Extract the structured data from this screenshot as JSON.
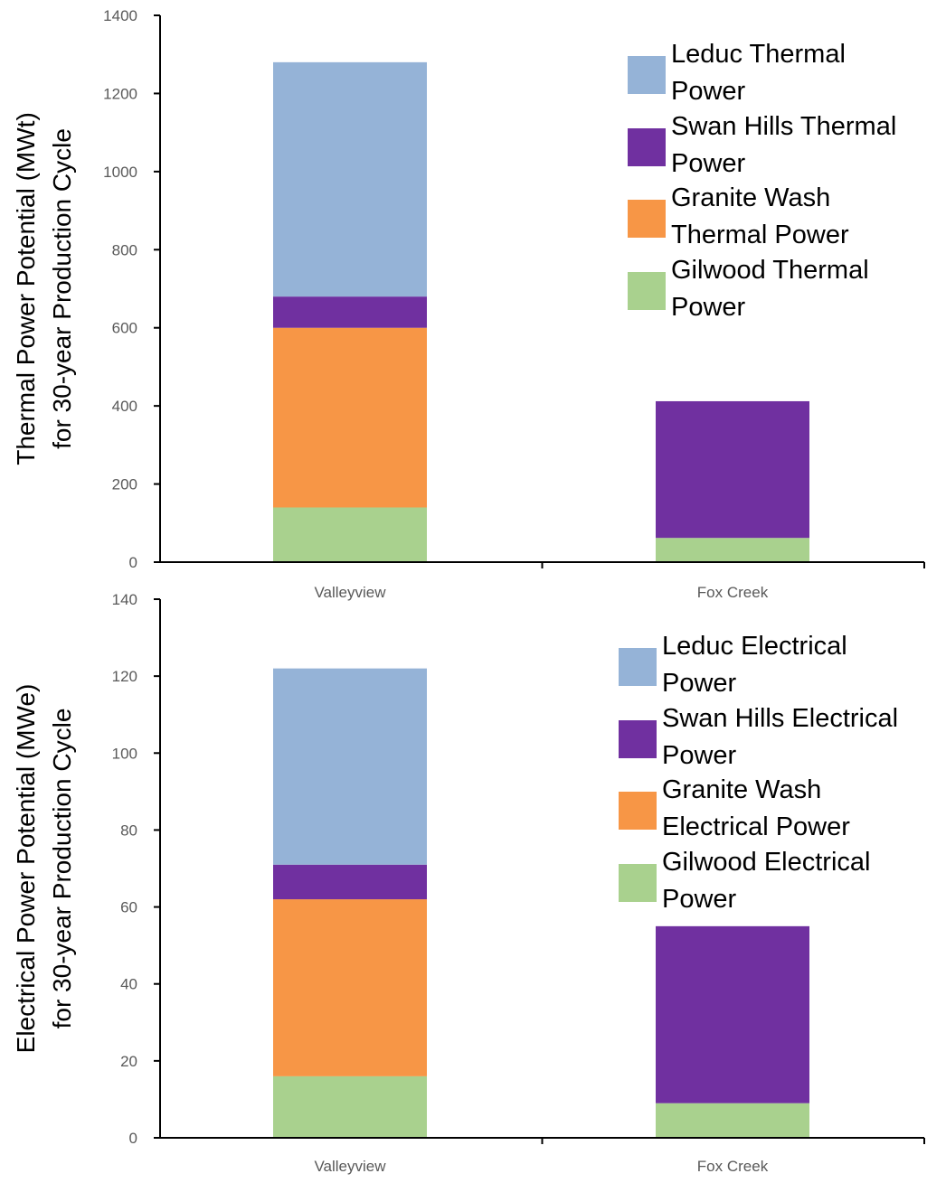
{
  "chart_data": [
    {
      "type": "bar",
      "stacked": true,
      "categories": [
        "Valleyview",
        "Fox Creek"
      ],
      "series": [
        {
          "name": "Gilwood Thermal Power",
          "values": [
            140,
            62
          ],
          "color": "#a9d18e"
        },
        {
          "name": "Granite Wash Thermal Power",
          "values": [
            460,
            0
          ],
          "color": "#f79646"
        },
        {
          "name": "Swan Hills Thermal Power",
          "values": [
            80,
            350
          ],
          "color": "#7030a0"
        },
        {
          "name": "Leduc Thermal Power",
          "values": [
            600,
            0
          ],
          "color": "#95b3d7"
        }
      ],
      "legend_order": [
        {
          "line1": "Leduc Thermal",
          "line2": "Power",
          "color": "#95b3d7"
        },
        {
          "line1": "Swan Hills Thermal",
          "line2": "Power",
          "color": "#7030a0"
        },
        {
          "line1": "Granite Wash",
          "line2": "Thermal Power",
          "color": "#f79646"
        },
        {
          "line1": "Gilwood Thermal",
          "line2": "Power",
          "color": "#a9d18e"
        }
      ],
      "ylabel_line1": "Thermal Power Potential (MWt)",
      "ylabel_line2": "for 30-year Production Cycle",
      "ylim": [
        0,
        1400
      ],
      "yticks": [
        0,
        200,
        400,
        600,
        800,
        1000,
        1200,
        1400
      ],
      "grid": false,
      "legend_position": "top-right"
    },
    {
      "type": "bar",
      "stacked": true,
      "categories": [
        "Valleyview",
        "Fox Creek"
      ],
      "series": [
        {
          "name": "Gilwood Electrical Power",
          "values": [
            16,
            9
          ],
          "color": "#a9d18e"
        },
        {
          "name": "Granite Wash Electrical Power",
          "values": [
            46,
            0
          ],
          "color": "#f79646"
        },
        {
          "name": "Swan Hills Electrical Power",
          "values": [
            9,
            46
          ],
          "color": "#7030a0"
        },
        {
          "name": "Leduc Electrical Power",
          "values": [
            51,
            0
          ],
          "color": "#95b3d7"
        }
      ],
      "legend_order": [
        {
          "line1": "Leduc Electrical",
          "line2": "Power",
          "color": "#95b3d7"
        },
        {
          "line1": "Swan Hills Electrical",
          "line2": "Power",
          "color": "#7030a0"
        },
        {
          "line1": "Granite Wash",
          "line2": "Electrical Power",
          "color": "#f79646"
        },
        {
          "line1": "Gilwood Electrical",
          "line2": "Power",
          "color": "#a9d18e"
        }
      ],
      "ylabel_line1": "Electrical Power Potential (MWe)",
      "ylabel_line2": "for 30-year Production Cycle",
      "ylim": [
        0,
        140
      ],
      "yticks": [
        0,
        20,
        40,
        60,
        80,
        100,
        120,
        140
      ],
      "grid": false,
      "legend_position": "top-right"
    }
  ]
}
